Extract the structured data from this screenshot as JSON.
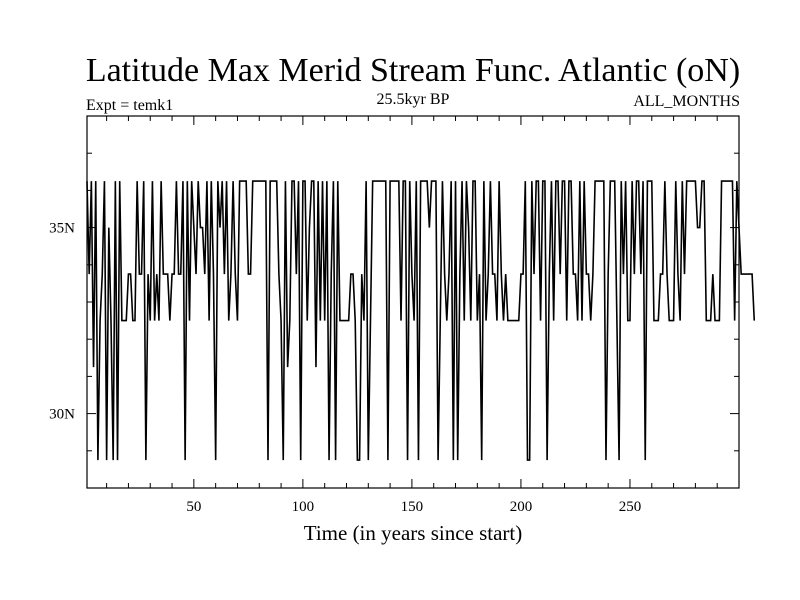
{
  "chart_data": {
    "type": "line",
    "title": "Latitude Max Merid Stream Func. Atlantic (oN)",
    "subtitle_left": "Expt = temk1",
    "subtitle_center": "25.5kyr BP",
    "subtitle_right": "ALL_MONTHS",
    "xlabel": "Time (in years since start)",
    "ylabel": "",
    "xlim": [
      1,
      300
    ],
    "ylim": [
      28,
      38
    ],
    "x_ticks": [
      50,
      100,
      150,
      200,
      250
    ],
    "x_tick_labels": [
      "50",
      "100",
      "150",
      "200",
      "250"
    ],
    "y_ticks": [
      30,
      35
    ],
    "y_tick_labels": [
      "30N",
      "35N"
    ],
    "grid": false,
    "line_color": "#000000",
    "series": [
      {
        "x_start": 1,
        "x_step": 1,
        "values": [
          36.25,
          33.75,
          36.25,
          31.25,
          36.25,
          28.75,
          32.5,
          33.75,
          36.25,
          28.75,
          35,
          32.5,
          28.75,
          36.25,
          28.75,
          36.25,
          32.5,
          32.5,
          32.5,
          33.75,
          33.75,
          32.5,
          32.5,
          36.25,
          33.75,
          33.75,
          36.25,
          28.75,
          33.75,
          32.5,
          36.25,
          32.5,
          33.75,
          32.5,
          36.25,
          33.75,
          33.75,
          33.75,
          32.5,
          33.75,
          33.75,
          36.25,
          33.75,
          33.75,
          36.25,
          28.75,
          36.25,
          32.5,
          36.25,
          35,
          33.75,
          36.25,
          35,
          35,
          33.75,
          36.25,
          32.5,
          36.25,
          33.75,
          28.75,
          36.25,
          35,
          36.25,
          33.75,
          36.25,
          32.5,
          33.75,
          36.25,
          33.75,
          32.5,
          36.25,
          36.25,
          36.25,
          36.25,
          33.75,
          33.75,
          36.25,
          36.25,
          36.25,
          36.25,
          36.25,
          36.25,
          36.25,
          28.75,
          36.25,
          36.25,
          36.25,
          36.25,
          33.75,
          32.5,
          28.75,
          36.25,
          31.25,
          32.5,
          36.25,
          36.25,
          33.75,
          36.25,
          28.75,
          36.25,
          36.25,
          32.5,
          35,
          36.25,
          36.25,
          31.25,
          36.25,
          32.5,
          36.25,
          32.5,
          36.25,
          28.75,
          33.75,
          36.25,
          28.75,
          36.25,
          32.5,
          32.5,
          32.5,
          32.5,
          32.5,
          33.75,
          33.75,
          32.5,
          28.75,
          28.75,
          33.75,
          32.5,
          36.25,
          28.75,
          32.5,
          36.25,
          36.25,
          36.25,
          36.25,
          36.25,
          36.25,
          36.25,
          28.75,
          36.25,
          36.25,
          36.25,
          36.25,
          36.25,
          32.5,
          36.25,
          36.25,
          28.75,
          36.25,
          33.75,
          32.5,
          36.25,
          28.75,
          36.25,
          36.25,
          36.25,
          36.25,
          35,
          36.25,
          36.25,
          36.25,
          28.75,
          32.5,
          36.25,
          33.75,
          32.5,
          33.75,
          36.25,
          28.75,
          36.25,
          28.75,
          33.75,
          36.25,
          32.5,
          36.25,
          35,
          32.5,
          36.25,
          36.25,
          32.5,
          33.75,
          28.75,
          36.25,
          32.5,
          33.75,
          36.25,
          33.75,
          33.75,
          32.5,
          36.25,
          33.75,
          32.5,
          33.75,
          32.5,
          32.5,
          32.5,
          32.5,
          32.5,
          32.5,
          33.75,
          33.75,
          36.25,
          28.75,
          28.75,
          36.25,
          33.75,
          36.25,
          36.25,
          32.5,
          36.25,
          36.25,
          28.75,
          33.75,
          36.25,
          32.5,
          36.25,
          36.25,
          33.75,
          36.25,
          36.25,
          32.5,
          36.25,
          36.25,
          33.75,
          33.75,
          32.5,
          36.25,
          32.5,
          36.25,
          33.75,
          33.75,
          32.5,
          33.75,
          36.25,
          36.25,
          36.25,
          36.25,
          36.25,
          28.75,
          33.75,
          36.25,
          36.25,
          36.25,
          32.5,
          28.75,
          36.25,
          33.75,
          36.25,
          32.5,
          32.5,
          36.25,
          33.75,
          36.25,
          36.25,
          33.75,
          36.25,
          28.75,
          36.25,
          36.25,
          36.25,
          32.5,
          32.5,
          32.5,
          33.75,
          33.75,
          36.25,
          33.75,
          32.5,
          32.5,
          32.5,
          36.25,
          33.75,
          32.5,
          36.25,
          33.75,
          36.25,
          36.25,
          36.25,
          36.25,
          36.25,
          35,
          35,
          36.25,
          36.25,
          32.5,
          32.5,
          32.5,
          33.75,
          32.5,
          32.5,
          32.5,
          36.25,
          36.25,
          36.25,
          36.25,
          36.25,
          36.25,
          32.5,
          36.25,
          35,
          33.75,
          33.75,
          33.75,
          33.75,
          33.75,
          33.75,
          32.5
        ]
      }
    ]
  }
}
